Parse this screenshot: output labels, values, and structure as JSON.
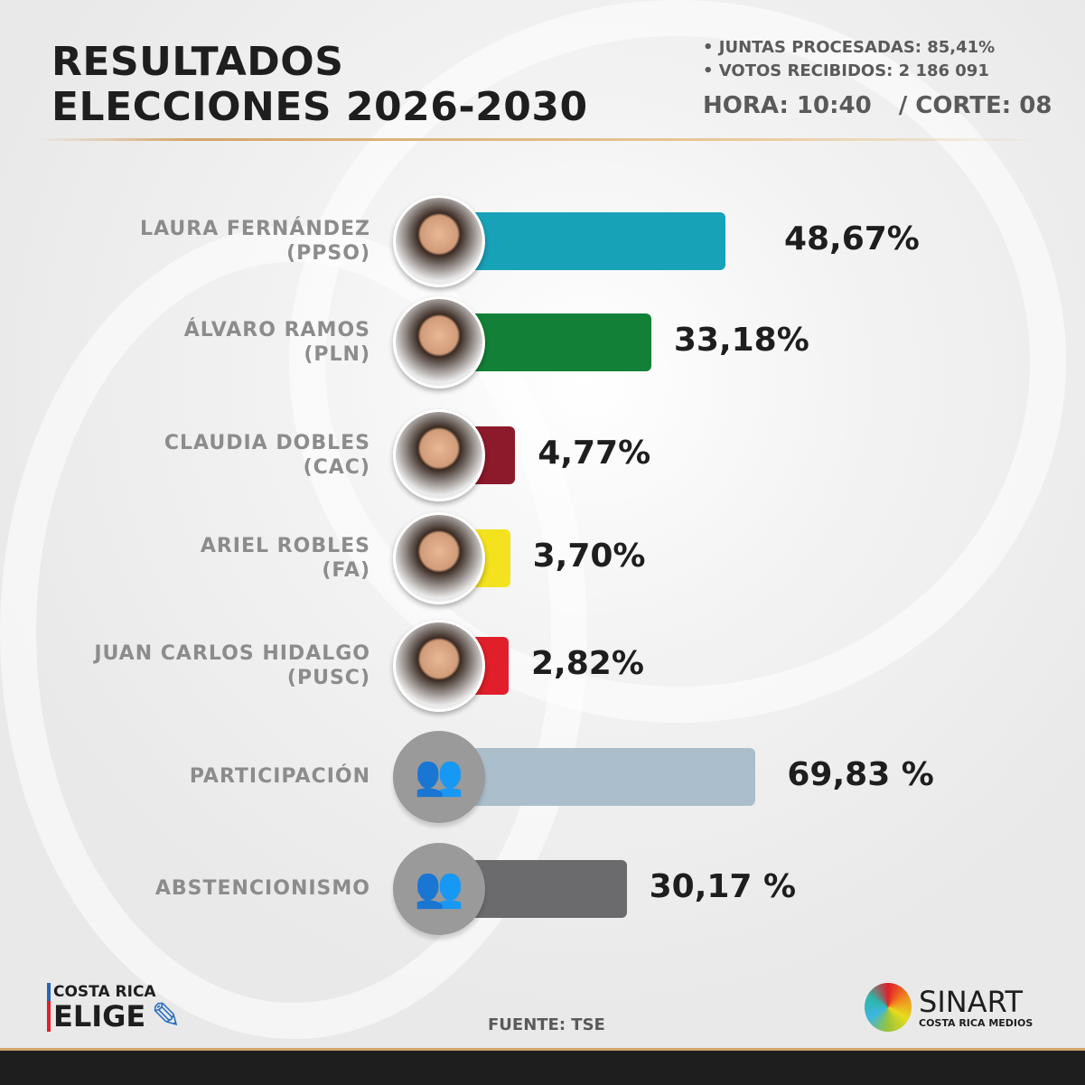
{
  "header": {
    "title_line1": "RESULTADOS",
    "title_line2": "ELECCIONES 2026-2030",
    "juntas": "• JUNTAS PROCESADAS: 85,41%",
    "votos": "• VOTOS RECIBIDOS: 2 186 091",
    "hora": "HORA: 10:40",
    "corte": "/ CORTE: 08"
  },
  "chart_data": {
    "type": "bar",
    "orientation": "horizontal",
    "categories": [
      "LAURA FERNÁNDEZ (PPSO)",
      "ÁLVARO RAMOS (PLN)",
      "CLAUDIA DOBLES (CAC)",
      "ARIEL ROBLES (FA)",
      "JUAN CARLOS HIDALGO (PUSC)",
      "PARTICIPACIÓN",
      "ABSTENCIONISMO"
    ],
    "rows": [
      {
        "name": "LAURA FERNÁNDEZ",
        "party": "(PPSO)",
        "value": 48.67,
        "label": "48,67%",
        "color": "#18a2b8"
      },
      {
        "name": "ÁLVARO RAMOS",
        "party": "(PLN)",
        "value": 33.18,
        "label": "33,18%",
        "color": "#138038"
      },
      {
        "name": "CLAUDIA DOBLES",
        "party": "(CAC)",
        "value": 4.77,
        "label": "4,77%",
        "color": "#8c1a2a"
      },
      {
        "name": "ARIEL ROBLES",
        "party": "(FA)",
        "value": 3.7,
        "label": "3,70%",
        "color": "#f4e21e"
      },
      {
        "name": "JUAN CARLOS HIDALGO",
        "party": "(PUSC)",
        "value": 2.82,
        "label": "2,82%",
        "color": "#e01f2a"
      },
      {
        "name": "PARTICIPACIÓN",
        "party": "",
        "value": 69.83,
        "label": "69,83 %",
        "color": "#abbecb"
      },
      {
        "name": "ABSTENCIONISMO",
        "party": "",
        "value": 30.17,
        "label": "30,17 %",
        "color": "#6b6b6d"
      }
    ]
  },
  "footer": {
    "source": "FUENTE: TSE",
    "logo_left_top": "COSTA RICA",
    "logo_left_bottom": "ELIGE",
    "logo_right_top": "SINART",
    "logo_right_bottom": "COSTA RICA MEDIOS"
  }
}
